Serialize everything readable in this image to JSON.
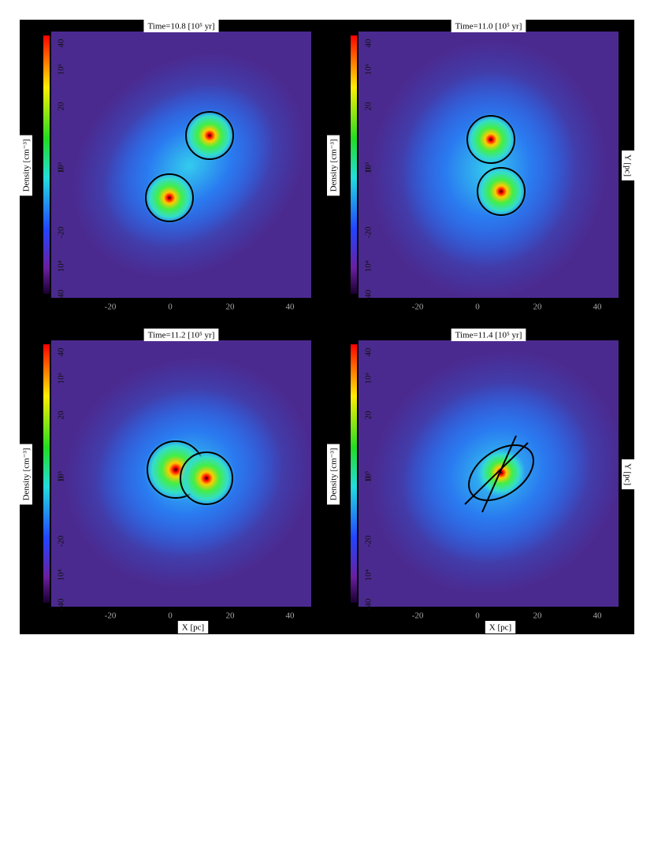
{
  "figure": {
    "panels": [
      {
        "title": "Time=10.8 [10⁵ yr]",
        "colorbar_label": "Density [cm⁻³]",
        "colorbar_ticks": [
          "10⁶",
          "10⁵",
          "10⁴"
        ],
        "xticks": [
          "-20",
          "0",
          "20",
          "40"
        ],
        "yticks": [
          "40",
          "20",
          "0",
          "-20",
          "-40"
        ]
      },
      {
        "title": "Time=11.0 [10⁵ yr]",
        "colorbar_label": "Density [cm⁻³]",
        "colorbar_ticks": [
          "10⁶",
          "10⁵",
          "10⁴"
        ],
        "xticks": [
          "-20",
          "0",
          "20",
          "40"
        ],
        "yticks": [
          "40",
          "20",
          "0",
          "-20",
          "-40"
        ]
      },
      {
        "title": "Time=11.2 [10⁵ yr]",
        "colorbar_label": "Density [cm⁻³]",
        "colorbar_ticks": [
          "10⁶",
          "10⁵",
          "10⁴"
        ],
        "xticks": [
          "-20",
          "0",
          "20",
          "40"
        ],
        "yticks": [
          "40",
          "20",
          "0",
          "-20",
          "-40"
        ]
      },
      {
        "title": "Time=11.4 [10⁵ yr]",
        "colorbar_label": "Density [cm⁻³]",
        "colorbar_ticks": [
          "10⁶",
          "10⁵",
          "10⁴"
        ],
        "xticks": [
          "-20",
          "0",
          "20",
          "40"
        ],
        "yticks": [
          "40",
          "20",
          "0",
          "-20",
          "-40"
        ]
      }
    ],
    "x_label": "X [pc]",
    "y_label": "Y [pc]"
  }
}
